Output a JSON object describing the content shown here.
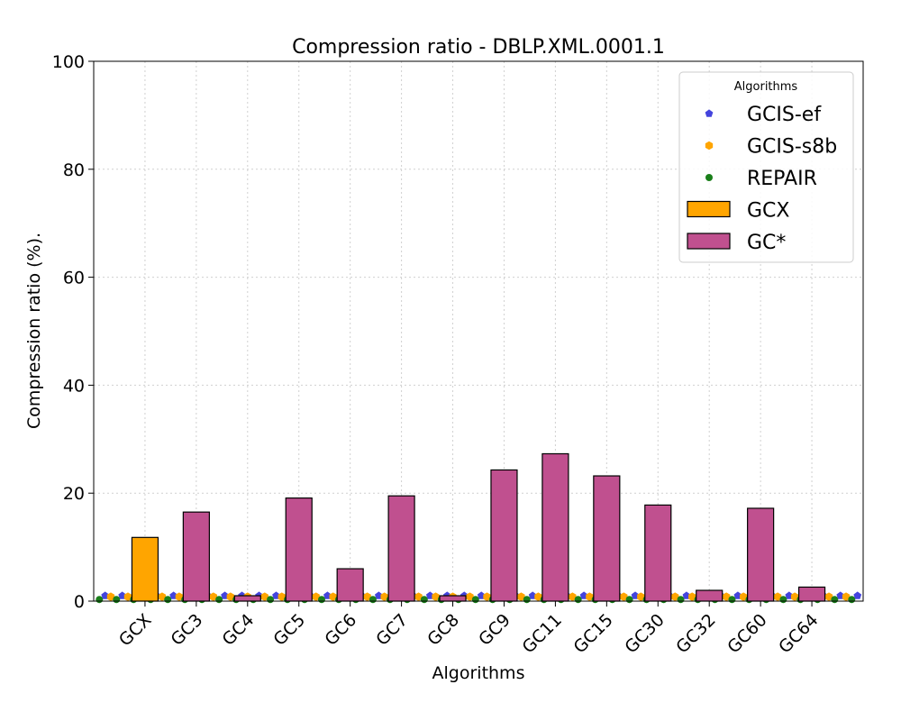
{
  "chart_data": {
    "type": "bar",
    "title": "Compression ratio -  DBLP.XML.0001.1",
    "xlabel": "Algorithms",
    "ylabel": "Compression ratio (%).",
    "ylim": [
      0,
      100
    ],
    "yticks": [
      0,
      20,
      40,
      60,
      80,
      100
    ],
    "grid": true,
    "legend_position": "top-right",
    "legend_title": "Algorithms",
    "categories": [
      "GCX",
      "GC3",
      "GC4",
      "GC5",
      "GC6",
      "GC7",
      "GC8",
      "GC9",
      "GC11",
      "GC15",
      "GC30",
      "GC32",
      "GC60",
      "GC64"
    ],
    "series": [
      {
        "name": "GCX",
        "kind": "bar",
        "color": "#FFA500",
        "values": [
          11.8,
          null,
          null,
          null,
          null,
          null,
          null,
          null,
          null,
          null,
          null,
          null,
          null,
          null
        ]
      },
      {
        "name": "GC*",
        "kind": "bar",
        "color": "#C0508F",
        "values": [
          null,
          16.5,
          1.0,
          19.1,
          6.0,
          19.5,
          1.0,
          24.3,
          27.3,
          23.2,
          17.8,
          2.0,
          17.2,
          2.6
        ]
      },
      {
        "name": "GCIS-ef",
        "kind": "scatter",
        "color": "#4444DD",
        "marker": "pentagon",
        "values": [
          1.0,
          1.0,
          1.0,
          1.0,
          1.0,
          1.0,
          1.0,
          1.0,
          1.0,
          1.0,
          1.0,
          1.0,
          1.0,
          1.0
        ]
      },
      {
        "name": "GCIS-s8b",
        "kind": "scatter",
        "color": "#FFA500",
        "marker": "hexagon",
        "values": [
          0.8,
          0.8,
          0.8,
          0.8,
          0.8,
          0.8,
          0.8,
          0.8,
          0.8,
          0.8,
          0.8,
          0.8,
          0.8,
          0.8
        ]
      },
      {
        "name": "REPAIR",
        "kind": "scatter",
        "color": "#1A7F1A",
        "marker": "circle",
        "values": [
          0.3,
          0.3,
          0.3,
          0.3,
          0.3,
          0.3,
          0.3,
          0.3,
          0.3,
          0.3,
          0.3,
          0.3,
          0.3,
          0.3
        ]
      }
    ],
    "legend_order": [
      "GCIS-ef",
      "GCIS-s8b",
      "REPAIR",
      "GCX",
      "GC*"
    ]
  }
}
